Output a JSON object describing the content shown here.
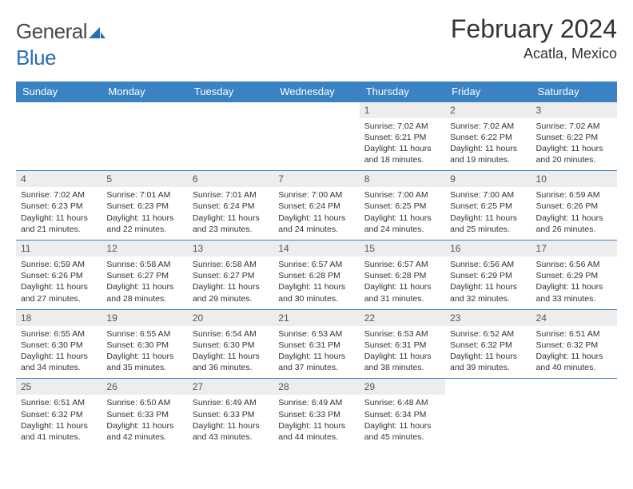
{
  "logo": {
    "text1": "General",
    "text2": "Blue"
  },
  "title": "February 2024",
  "subtitle": "Acatla, Mexico",
  "colors": {
    "header_bg": "#3b82c4",
    "header_text": "#ffffff",
    "daynum_bg": "#ededed",
    "row_border": "#3b82c4",
    "body_text": "#333333",
    "logo_gray": "#4a4a4a",
    "logo_blue": "#2d6db3"
  },
  "weekdays": [
    "Sunday",
    "Monday",
    "Tuesday",
    "Wednesday",
    "Thursday",
    "Friday",
    "Saturday"
  ],
  "grid": [
    [
      null,
      null,
      null,
      null,
      {
        "n": "1",
        "sr": "7:02 AM",
        "ss": "6:21 PM",
        "dl": "11 hours and 18 minutes."
      },
      {
        "n": "2",
        "sr": "7:02 AM",
        "ss": "6:22 PM",
        "dl": "11 hours and 19 minutes."
      },
      {
        "n": "3",
        "sr": "7:02 AM",
        "ss": "6:22 PM",
        "dl": "11 hours and 20 minutes."
      }
    ],
    [
      {
        "n": "4",
        "sr": "7:02 AM",
        "ss": "6:23 PM",
        "dl": "11 hours and 21 minutes."
      },
      {
        "n": "5",
        "sr": "7:01 AM",
        "ss": "6:23 PM",
        "dl": "11 hours and 22 minutes."
      },
      {
        "n": "6",
        "sr": "7:01 AM",
        "ss": "6:24 PM",
        "dl": "11 hours and 23 minutes."
      },
      {
        "n": "7",
        "sr": "7:00 AM",
        "ss": "6:24 PM",
        "dl": "11 hours and 24 minutes."
      },
      {
        "n": "8",
        "sr": "7:00 AM",
        "ss": "6:25 PM",
        "dl": "11 hours and 24 minutes."
      },
      {
        "n": "9",
        "sr": "7:00 AM",
        "ss": "6:25 PM",
        "dl": "11 hours and 25 minutes."
      },
      {
        "n": "10",
        "sr": "6:59 AM",
        "ss": "6:26 PM",
        "dl": "11 hours and 26 minutes."
      }
    ],
    [
      {
        "n": "11",
        "sr": "6:59 AM",
        "ss": "6:26 PM",
        "dl": "11 hours and 27 minutes."
      },
      {
        "n": "12",
        "sr": "6:58 AM",
        "ss": "6:27 PM",
        "dl": "11 hours and 28 minutes."
      },
      {
        "n": "13",
        "sr": "6:58 AM",
        "ss": "6:27 PM",
        "dl": "11 hours and 29 minutes."
      },
      {
        "n": "14",
        "sr": "6:57 AM",
        "ss": "6:28 PM",
        "dl": "11 hours and 30 minutes."
      },
      {
        "n": "15",
        "sr": "6:57 AM",
        "ss": "6:28 PM",
        "dl": "11 hours and 31 minutes."
      },
      {
        "n": "16",
        "sr": "6:56 AM",
        "ss": "6:29 PM",
        "dl": "11 hours and 32 minutes."
      },
      {
        "n": "17",
        "sr": "6:56 AM",
        "ss": "6:29 PM",
        "dl": "11 hours and 33 minutes."
      }
    ],
    [
      {
        "n": "18",
        "sr": "6:55 AM",
        "ss": "6:30 PM",
        "dl": "11 hours and 34 minutes."
      },
      {
        "n": "19",
        "sr": "6:55 AM",
        "ss": "6:30 PM",
        "dl": "11 hours and 35 minutes."
      },
      {
        "n": "20",
        "sr": "6:54 AM",
        "ss": "6:30 PM",
        "dl": "11 hours and 36 minutes."
      },
      {
        "n": "21",
        "sr": "6:53 AM",
        "ss": "6:31 PM",
        "dl": "11 hours and 37 minutes."
      },
      {
        "n": "22",
        "sr": "6:53 AM",
        "ss": "6:31 PM",
        "dl": "11 hours and 38 minutes."
      },
      {
        "n": "23",
        "sr": "6:52 AM",
        "ss": "6:32 PM",
        "dl": "11 hours and 39 minutes."
      },
      {
        "n": "24",
        "sr": "6:51 AM",
        "ss": "6:32 PM",
        "dl": "11 hours and 40 minutes."
      }
    ],
    [
      {
        "n": "25",
        "sr": "6:51 AM",
        "ss": "6:32 PM",
        "dl": "11 hours and 41 minutes."
      },
      {
        "n": "26",
        "sr": "6:50 AM",
        "ss": "6:33 PM",
        "dl": "11 hours and 42 minutes."
      },
      {
        "n": "27",
        "sr": "6:49 AM",
        "ss": "6:33 PM",
        "dl": "11 hours and 43 minutes."
      },
      {
        "n": "28",
        "sr": "6:49 AM",
        "ss": "6:33 PM",
        "dl": "11 hours and 44 minutes."
      },
      {
        "n": "29",
        "sr": "6:48 AM",
        "ss": "6:34 PM",
        "dl": "11 hours and 45 minutes."
      },
      null,
      null
    ]
  ],
  "labels": {
    "sunrise": "Sunrise:",
    "sunset": "Sunset:",
    "daylight": "Daylight:"
  }
}
